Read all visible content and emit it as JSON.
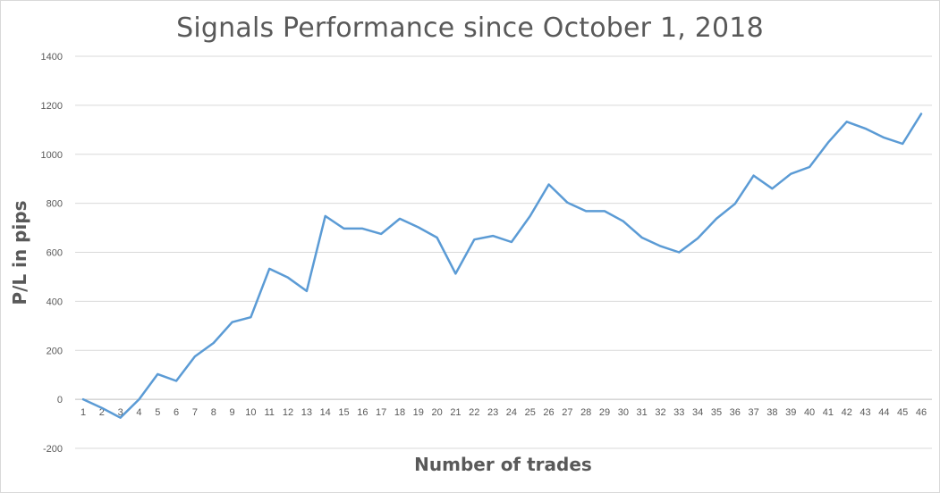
{
  "chart_data": {
    "type": "line",
    "title": "Signals Performance since October 1, 2018",
    "xlabel": "Number of trades",
    "ylabel": "P/L in pips",
    "ylim": [
      -200,
      1400
    ],
    "ytick_step": 200,
    "grid": true,
    "legend": "none",
    "line_color": "#5b9bd5",
    "categories": [
      "1",
      "2",
      "3",
      "4",
      "5",
      "6",
      "7",
      "8",
      "9",
      "10",
      "11",
      "12",
      "13",
      "14",
      "15",
      "16",
      "17",
      "18",
      "19",
      "20",
      "21",
      "22",
      "23",
      "24",
      "25",
      "26",
      "27",
      "28",
      "29",
      "30",
      "31",
      "32",
      "33",
      "34",
      "35",
      "36",
      "37",
      "38",
      "39",
      "40",
      "41",
      "42",
      "43",
      "44",
      "45",
      "46"
    ],
    "values": [
      0,
      -35,
      -75,
      0,
      103,
      75,
      175,
      230,
      315,
      335,
      533,
      497,
      442,
      748,
      697,
      697,
      675,
      737,
      702,
      660,
      513,
      652,
      667,
      642,
      748,
      877,
      803,
      768,
      768,
      727,
      660,
      625,
      600,
      657,
      737,
      798,
      913,
      860,
      920,
      948,
      1048,
      1133,
      1105,
      1068,
      1043,
      1165
    ]
  }
}
